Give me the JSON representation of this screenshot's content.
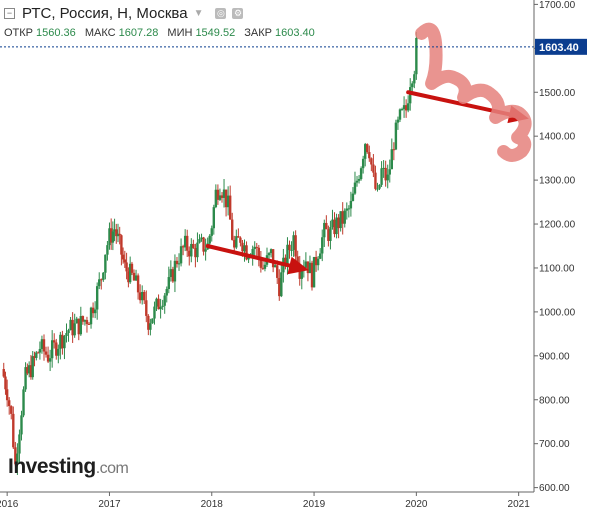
{
  "header": {
    "collapse_symbol": "−",
    "title": "РТС, Россия, Н, Москва",
    "caret_icon": "chevron-down-icon",
    "settings_icon": "gear-icon",
    "settings_symbol": "⚙",
    "target_icon": "target-icon",
    "target_symbol": "◎"
  },
  "ohlc": {
    "open_label": "ОТКР",
    "open": "1560.36",
    "high_label": "МАКС",
    "high": "1607.28",
    "low_label": "МИН",
    "low": "1549.52",
    "close_label": "ЗАКР",
    "close": "1603.40"
  },
  "logo": {
    "main": "Investing",
    "domain": ".com"
  },
  "colors": {
    "up": "#2c8a4b",
    "down": "#c0392b",
    "arrow": "#c8120f",
    "highlight": "#e5817c",
    "price_label_bg": "#0b3d8f"
  },
  "chart_data": {
    "type": "candlestick",
    "title": "РТС, Россия, Н, Москва",
    "interval": "weekly",
    "xlabel": "",
    "ylabel": "",
    "x_ticks": [
      "2016",
      "2017",
      "2018",
      "2019",
      "2020",
      "2021"
    ],
    "y_ticks": [
      "600.00",
      "700.00",
      "800.00",
      "900.00",
      "1000.00",
      "1100.00",
      "1200.00",
      "1300.00",
      "1400.00",
      "1500.00",
      "1600.00",
      "1700.00"
    ],
    "ylim": [
      590,
      1710
    ],
    "xlim": [
      2015.93,
      2021.15
    ],
    "last_price": "1603.40",
    "grid": false,
    "series_close": [
      [
        2015.95,
        870
      ],
      [
        2016.0,
        820
      ],
      [
        2016.04,
        760
      ],
      [
        2016.08,
        650
      ],
      [
        2016.1,
        700
      ],
      [
        2016.14,
        780
      ],
      [
        2016.18,
        850
      ],
      [
        2016.25,
        880
      ],
      [
        2016.32,
        920
      ],
      [
        2016.4,
        900
      ],
      [
        2016.5,
        930
      ],
      [
        2016.6,
        960
      ],
      [
        2016.7,
        970
      ],
      [
        2016.8,
        990
      ],
      [
        2016.86,
        1030
      ],
      [
        2016.92,
        1080
      ],
      [
        2016.96,
        1140
      ],
      [
        2017.0,
        1170
      ],
      [
        2017.05,
        1190
      ],
      [
        2017.1,
        1150
      ],
      [
        2017.15,
        1100
      ],
      [
        2017.22,
        1080
      ],
      [
        2017.3,
        1040
      ],
      [
        2017.38,
        980
      ],
      [
        2017.44,
        1000
      ],
      [
        2017.5,
        1030
      ],
      [
        2017.58,
        1060
      ],
      [
        2017.66,
        1120
      ],
      [
        2017.74,
        1150
      ],
      [
        2017.82,
        1140
      ],
      [
        2017.9,
        1150
      ],
      [
        2017.96,
        1150
      ],
      [
        2018.0,
        1200
      ],
      [
        2018.04,
        1270
      ],
      [
        2018.08,
        1290
      ],
      [
        2018.12,
        1270
      ],
      [
        2018.16,
        1240
      ],
      [
        2018.22,
        1140
      ],
      [
        2018.28,
        1170
      ],
      [
        2018.34,
        1140
      ],
      [
        2018.42,
        1150
      ],
      [
        2018.5,
        1100
      ],
      [
        2018.58,
        1130
      ],
      [
        2018.66,
        1060
      ],
      [
        2018.72,
        1120
      ],
      [
        2018.8,
        1170
      ],
      [
        2018.86,
        1100
      ],
      [
        2018.92,
        1120
      ],
      [
        2018.98,
        1080
      ],
      [
        2019.04,
        1140
      ],
      [
        2019.1,
        1180
      ],
      [
        2019.16,
        1180
      ],
      [
        2019.22,
        1200
      ],
      [
        2019.28,
        1210
      ],
      [
        2019.36,
        1240
      ],
      [
        2019.42,
        1300
      ],
      [
        2019.46,
        1340
      ],
      [
        2019.5,
        1390
      ],
      [
        2019.54,
        1370
      ],
      [
        2019.58,
        1300
      ],
      [
        2019.62,
        1260
      ],
      [
        2019.66,
        1320
      ],
      [
        2019.72,
        1300
      ],
      [
        2019.78,
        1390
      ],
      [
        2019.84,
        1440
      ],
      [
        2019.9,
        1460
      ],
      [
        2019.94,
        1530
      ],
      [
        2019.98,
        1560
      ],
      [
        2020.0,
        1603.4
      ]
    ],
    "annotations": [
      {
        "type": "arrow",
        "from": [
          2017.96,
          1150
        ],
        "to": [
          2018.95,
          1095
        ]
      },
      {
        "type": "arrow",
        "from": [
          2019.92,
          1500
        ],
        "to": [
          2021.1,
          1440
        ]
      },
      {
        "type": "scribble",
        "near": [
          2020.1,
          1520
        ]
      }
    ]
  }
}
